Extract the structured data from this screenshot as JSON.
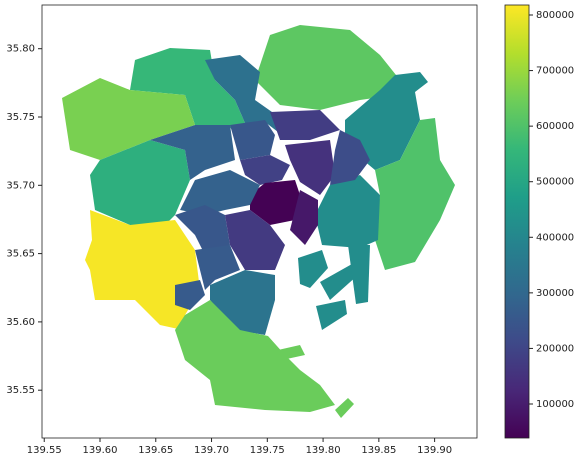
{
  "chart_data": {
    "type": "choropleth",
    "xlim": [
      139.548,
      139.938
    ],
    "ylim": [
      35.515,
      35.832
    ],
    "xticks": [
      139.55,
      {
        "value": 139.6,
        "label": "139.60"
      },
      139.65,
      {
        "value": 139.7,
        "label": "139.70"
      },
      139.75,
      {
        "value": 139.8,
        "label": "139.80"
      },
      139.85,
      {
        "value": 139.9,
        "label": "139.90"
      }
    ],
    "yticks": [
      35.55,
      {
        "value": 35.6,
        "label": "35.60"
      },
      35.65,
      {
        "value": 35.7,
        "label": "35.70"
      },
      35.75,
      {
        "value": 35.8,
        "label": "35.80"
      }
    ],
    "colormap": "viridis",
    "clim": [
      38800,
      818000
    ],
    "cticks": [
      100000,
      200000,
      300000,
      400000,
      500000,
      600000,
      700000,
      800000
    ],
    "values": [
      560000,
      660000,
      530000,
      810000,
      620000,
      420000,
      600000,
      420000,
      330000,
      280000,
      250000,
      180000,
      150000,
      190000,
      220000,
      40000,
      90000,
      280000,
      250000,
      170000,
      260000,
      340000,
      640000,
      260000
    ]
  }
}
